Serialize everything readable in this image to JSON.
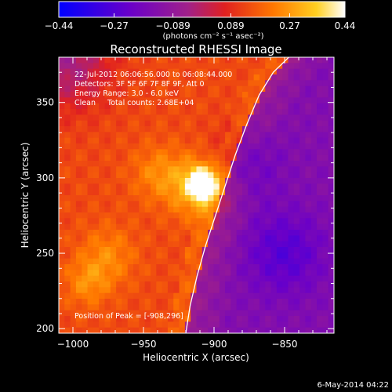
{
  "chart_data": {
    "type": "heatmap",
    "title": "Reconstructed RHESSI Image",
    "xlabel": "Heliocentric X (arcsec)",
    "ylabel": "Heliocentric Y (arcsec)",
    "xlim": [
      -1010,
      -815
    ],
    "ylim": [
      197,
      380
    ],
    "x_ticks": [
      -1000,
      -950,
      -900,
      -850
    ],
    "x_tick_labels": [
      "−1000",
      "−950",
      "−900",
      "−850"
    ],
    "y_ticks": [
      200,
      250,
      300,
      350
    ],
    "y_tick_labels": [
      "200",
      "250",
      "300",
      "350"
    ],
    "colorbar": {
      "min": -0.44,
      "max": 0.44,
      "ticks": [
        -0.44,
        -0.27,
        -0.089,
        0.089,
        0.27,
        0.44
      ],
      "tick_labels": [
        "−0.44",
        "−0.27",
        "−0.089",
        "0.089",
        "0.27",
        "0.44"
      ],
      "unit_label": "(photons cm⁻² s⁻¹ asec⁻²)",
      "colormap": "rainbow-blue-purple-red-orange-yellow-white"
    },
    "annotations": [
      "22-Jul-2012 06:06:56.000 to 06:08:44.000",
      "Detectors: 3F 5F 6F 7F 8F 9F, Att 0",
      "Energy Range: 3.0 - 6.0 keV",
      "Clean     Total counts: 2.68E+04"
    ],
    "peak_label": "Position of Peak = [-908,296]",
    "peak": {
      "x": -908,
      "y": 296
    },
    "limb_curve": {
      "x": [
        -920,
        -917,
        -912,
        -906,
        -899,
        -892,
        -885,
        -877,
        -868,
        -858,
        -847
      ],
      "y": [
        197,
        215,
        235,
        255,
        275,
        295,
        315,
        335,
        355,
        370,
        380
      ]
    },
    "emission_features": [
      {
        "name": "flare-kernel",
        "x": -908,
        "y": 296,
        "sigma": 6,
        "amp": 0.45
      },
      {
        "name": "flare-halo",
        "x": -911,
        "y": 294,
        "sigma": 14,
        "amp": 0.2
      },
      {
        "name": "bright-arc-1",
        "x": -940,
        "y": 303,
        "sigma": 13,
        "amp": 0.1
      },
      {
        "name": "bright-arc-2",
        "x": -975,
        "y": 248,
        "sigma": 14,
        "amp": 0.1
      },
      {
        "name": "bright-arc-3",
        "x": -990,
        "y": 230,
        "sigma": 11,
        "amp": 0.1
      },
      {
        "name": "dim-patch-1",
        "x": -850,
        "y": 250,
        "sigma": 19,
        "amp": -0.12
      },
      {
        "name": "dim-patch-2",
        "x": -880,
        "y": 310,
        "sigma": 17,
        "amp": -0.09
      }
    ]
  },
  "footer": {
    "date_stamp": "6-May-2014 04:22"
  }
}
